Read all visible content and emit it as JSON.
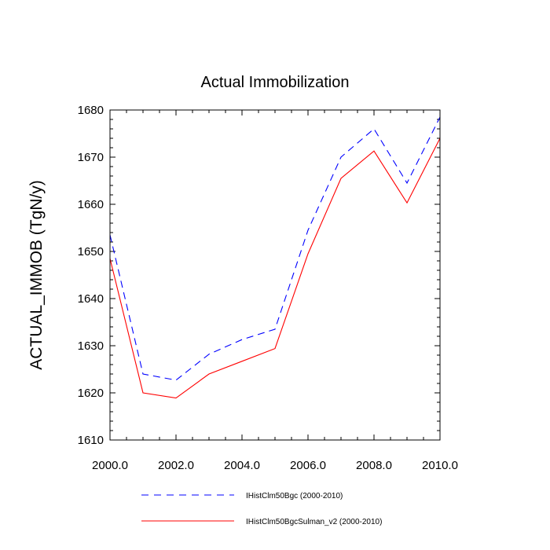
{
  "chart_data": {
    "type": "line",
    "title": "Actual Immobilization",
    "xlabel": "",
    "ylabel": "ACTUAL_IMMOB  (TgN/y)",
    "xlim": [
      2000,
      2010
    ],
    "ylim": [
      1610,
      1680
    ],
    "x_ticks": [
      "2000.0",
      "2002.0",
      "2004.0",
      "2006.0",
      "2008.0",
      "2010.0"
    ],
    "y_ticks": [
      "1610",
      "1620",
      "1630",
      "1640",
      "1650",
      "1660",
      "1670",
      "1680"
    ],
    "x": [
      2000,
      2001,
      2002,
      2003,
      2004,
      2005,
      2006,
      2007,
      2008,
      2009,
      2010
    ],
    "series": [
      {
        "name": "IHistClm50Bgc (2000-2010)",
        "color": "#0000ff",
        "dash": "dashed",
        "values": [
          1653.5,
          1624.0,
          1622.7,
          1628.2,
          1631.3,
          1633.5,
          1654.5,
          1670.0,
          1676.0,
          1664.5,
          1678.5
        ]
      },
      {
        "name": "IHistClm50BgcSulman_v2 (2000-2010)",
        "color": "#ff0000",
        "dash": "solid",
        "values": [
          1648.5,
          1620.0,
          1618.9,
          1624.0,
          1626.7,
          1629.4,
          1649.5,
          1665.5,
          1671.3,
          1660.3,
          1674.0
        ]
      }
    ],
    "grid": false,
    "legend": "bottom"
  }
}
